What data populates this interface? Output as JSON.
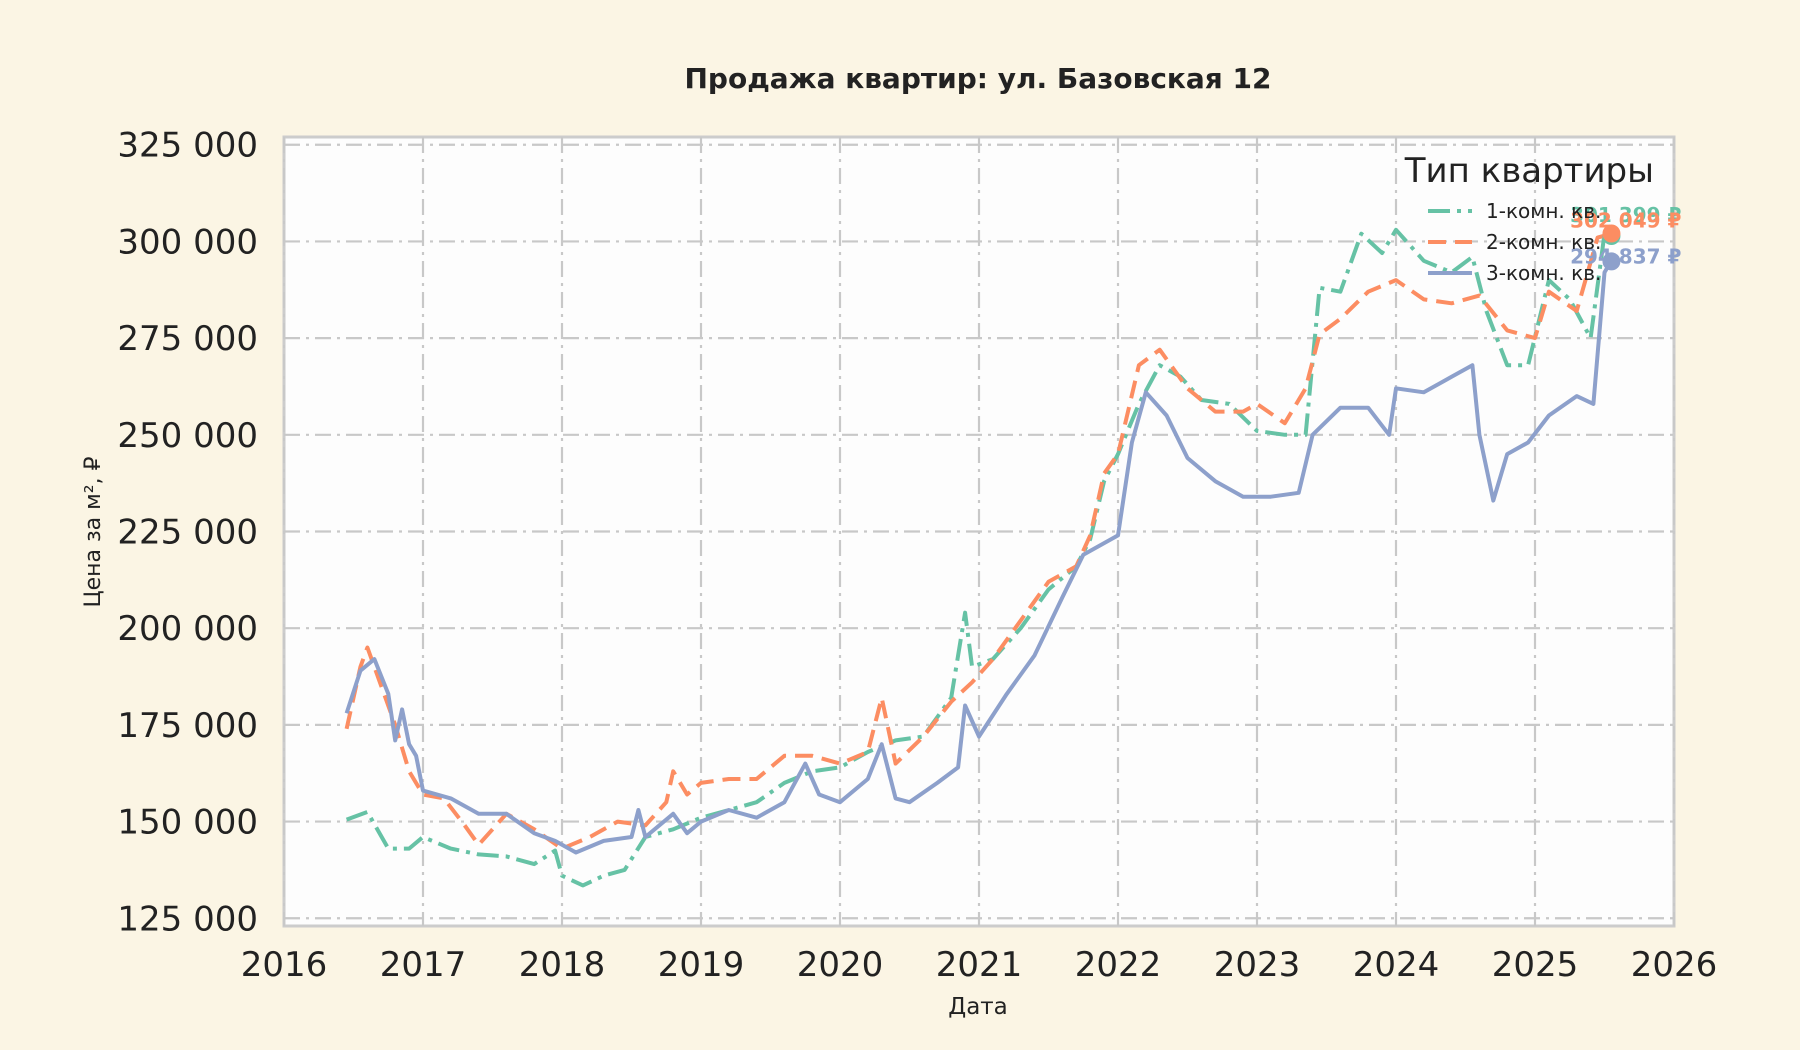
{
  "chart_data": {
    "type": "line",
    "title": "Продажа квартир: ул. Базовская 12",
    "xlabel": "Дата",
    "ylabel": "Цена за м², ₽",
    "xlim": [
      2016,
      2026
    ],
    "ylim": [
      123000,
      327000
    ],
    "x_ticks": [
      "2016",
      "2017",
      "2018",
      "2019",
      "2020",
      "2021",
      "2022",
      "2023",
      "2024",
      "2025",
      "2026"
    ],
    "y_ticks": [
      {
        "value": 125000,
        "label": "125 000"
      },
      {
        "value": 150000,
        "label": "150 000"
      },
      {
        "value": 175000,
        "label": "175 000"
      },
      {
        "value": 200000,
        "label": "200 000"
      },
      {
        "value": 225000,
        "label": "225 000"
      },
      {
        "value": 250000,
        "label": "250 000"
      },
      {
        "value": 275000,
        "label": "275 000"
      },
      {
        "value": 300000,
        "label": "300 000"
      },
      {
        "value": 325000,
        "label": "325 000"
      }
    ],
    "grid": true,
    "legend": {
      "title": "Тип квартиры",
      "position": "top-right"
    },
    "series": [
      {
        "name": "1-комн. кв.",
        "color": "#66c2a5",
        "dash": "dashdot",
        "points": [
          [
            2016.45,
            150500
          ],
          [
            2016.6,
            152500
          ],
          [
            2016.75,
            143000
          ],
          [
            2016.9,
            143000
          ],
          [
            2017.0,
            146000
          ],
          [
            2017.2,
            143000
          ],
          [
            2017.4,
            141500
          ],
          [
            2017.6,
            141000
          ],
          [
            2017.8,
            139000
          ],
          [
            2017.95,
            142500
          ],
          [
            2018.0,
            136000
          ],
          [
            2018.15,
            133500
          ],
          [
            2018.3,
            136000
          ],
          [
            2018.45,
            137500
          ],
          [
            2018.6,
            146000
          ],
          [
            2018.8,
            148000
          ],
          [
            2019.0,
            151000
          ],
          [
            2019.2,
            153000
          ],
          [
            2019.4,
            155000
          ],
          [
            2019.6,
            160000
          ],
          [
            2019.8,
            163000
          ],
          [
            2020.0,
            164000
          ],
          [
            2020.2,
            168000
          ],
          [
            2020.4,
            171000
          ],
          [
            2020.6,
            172000
          ],
          [
            2020.8,
            182000
          ],
          [
            2020.9,
            204000
          ],
          [
            2020.95,
            190000
          ],
          [
            2021.1,
            192000
          ],
          [
            2021.3,
            200000
          ],
          [
            2021.5,
            210000
          ],
          [
            2021.7,
            216000
          ],
          [
            2021.8,
            223000
          ],
          [
            2021.9,
            238000
          ],
          [
            2022.0,
            245000
          ],
          [
            2022.15,
            258000
          ],
          [
            2022.3,
            268000
          ],
          [
            2022.45,
            265000
          ],
          [
            2022.6,
            259000
          ],
          [
            2022.8,
            258000
          ],
          [
            2023.0,
            251000
          ],
          [
            2023.2,
            250000
          ],
          [
            2023.35,
            250000
          ],
          [
            2023.45,
            288000
          ],
          [
            2023.6,
            287000
          ],
          [
            2023.75,
            302000
          ],
          [
            2023.9,
            297000
          ],
          [
            2024.0,
            303000
          ],
          [
            2024.2,
            295000
          ],
          [
            2024.4,
            292000
          ],
          [
            2024.55,
            296000
          ],
          [
            2024.65,
            282000
          ],
          [
            2024.8,
            268000
          ],
          [
            2024.95,
            268000
          ],
          [
            2025.1,
            290000
          ],
          [
            2025.25,
            285000
          ],
          [
            2025.4,
            275000
          ],
          [
            2025.5,
            302000
          ],
          [
            2025.55,
            300000
          ]
        ]
      },
      {
        "name": "2-комн. кв.",
        "color": "#fc8d62",
        "dash": "dashed",
        "points": [
          [
            2016.45,
            174000
          ],
          [
            2016.55,
            190000
          ],
          [
            2016.6,
            195000
          ],
          [
            2016.7,
            185000
          ],
          [
            2016.8,
            175000
          ],
          [
            2016.9,
            163000
          ],
          [
            2017.0,
            157000
          ],
          [
            2017.15,
            156000
          ],
          [
            2017.3,
            149000
          ],
          [
            2017.4,
            144000
          ],
          [
            2017.6,
            152000
          ],
          [
            2017.8,
            148000
          ],
          [
            2018.0,
            143000
          ],
          [
            2018.2,
            146000
          ],
          [
            2018.4,
            150000
          ],
          [
            2018.6,
            149000
          ],
          [
            2018.75,
            155000
          ],
          [
            2018.8,
            163000
          ],
          [
            2018.9,
            157000
          ],
          [
            2019.0,
            160000
          ],
          [
            2019.2,
            161000
          ],
          [
            2019.4,
            161000
          ],
          [
            2019.6,
            167000
          ],
          [
            2019.8,
            167000
          ],
          [
            2020.0,
            165000
          ],
          [
            2020.2,
            168000
          ],
          [
            2020.3,
            182000
          ],
          [
            2020.4,
            165000
          ],
          [
            2020.6,
            172000
          ],
          [
            2020.8,
            181000
          ],
          [
            2020.95,
            186000
          ],
          [
            2021.1,
            192000
          ],
          [
            2021.3,
            202000
          ],
          [
            2021.5,
            212000
          ],
          [
            2021.7,
            216000
          ],
          [
            2021.8,
            224000
          ],
          [
            2021.9,
            240000
          ],
          [
            2022.0,
            245000
          ],
          [
            2022.15,
            268000
          ],
          [
            2022.3,
            272000
          ],
          [
            2022.5,
            262000
          ],
          [
            2022.7,
            256000
          ],
          [
            2022.9,
            256000
          ],
          [
            2023.0,
            258000
          ],
          [
            2023.2,
            253000
          ],
          [
            2023.35,
            262000
          ],
          [
            2023.45,
            276000
          ],
          [
            2023.6,
            280000
          ],
          [
            2023.8,
            287000
          ],
          [
            2024.0,
            290000
          ],
          [
            2024.2,
            285000
          ],
          [
            2024.4,
            284000
          ],
          [
            2024.6,
            286000
          ],
          [
            2024.8,
            277000
          ],
          [
            2025.0,
            275000
          ],
          [
            2025.1,
            287000
          ],
          [
            2025.3,
            282000
          ],
          [
            2025.45,
            301000
          ],
          [
            2025.55,
            302000
          ]
        ]
      },
      {
        "name": "3-комн. кв.",
        "color": "#8da0cb",
        "dash": "solid",
        "points": [
          [
            2016.45,
            178000
          ],
          [
            2016.55,
            189000
          ],
          [
            2016.65,
            192000
          ],
          [
            2016.75,
            183000
          ],
          [
            2016.8,
            171000
          ],
          [
            2016.85,
            179000
          ],
          [
            2016.9,
            170000
          ],
          [
            2016.95,
            167000
          ],
          [
            2017.0,
            158000
          ],
          [
            2017.2,
            156000
          ],
          [
            2017.4,
            152000
          ],
          [
            2017.6,
            152000
          ],
          [
            2017.8,
            147000
          ],
          [
            2017.95,
            145000
          ],
          [
            2018.1,
            142000
          ],
          [
            2018.3,
            145000
          ],
          [
            2018.5,
            146000
          ],
          [
            2018.55,
            153000
          ],
          [
            2018.6,
            146000
          ],
          [
            2018.8,
            152000
          ],
          [
            2018.9,
            147000
          ],
          [
            2019.0,
            150000
          ],
          [
            2019.2,
            153000
          ],
          [
            2019.4,
            151000
          ],
          [
            2019.6,
            155000
          ],
          [
            2019.75,
            165000
          ],
          [
            2019.85,
            157000
          ],
          [
            2020.0,
            155000
          ],
          [
            2020.2,
            161000
          ],
          [
            2020.3,
            170000
          ],
          [
            2020.4,
            156000
          ],
          [
            2020.5,
            155000
          ],
          [
            2020.7,
            160000
          ],
          [
            2020.85,
            164000
          ],
          [
            2020.9,
            180000
          ],
          [
            2021.0,
            172000
          ],
          [
            2021.2,
            183000
          ],
          [
            2021.4,
            193000
          ],
          [
            2021.6,
            208000
          ],
          [
            2021.75,
            219000
          ],
          [
            2022.0,
            224000
          ],
          [
            2022.1,
            248000
          ],
          [
            2022.2,
            261000
          ],
          [
            2022.35,
            255000
          ],
          [
            2022.5,
            244000
          ],
          [
            2022.7,
            238000
          ],
          [
            2022.9,
            234000
          ],
          [
            2023.1,
            234000
          ],
          [
            2023.3,
            235000
          ],
          [
            2023.4,
            250000
          ],
          [
            2023.6,
            257000
          ],
          [
            2023.8,
            257000
          ],
          [
            2023.95,
            250000
          ],
          [
            2024.0,
            262000
          ],
          [
            2024.2,
            261000
          ],
          [
            2024.4,
            265000
          ],
          [
            2024.55,
            268000
          ],
          [
            2024.6,
            250000
          ],
          [
            2024.7,
            233000
          ],
          [
            2024.8,
            245000
          ],
          [
            2024.95,
            248000
          ],
          [
            2025.1,
            255000
          ],
          [
            2025.3,
            260000
          ],
          [
            2025.42,
            258000
          ],
          [
            2025.5,
            292000
          ],
          [
            2025.55,
            295000
          ]
        ]
      }
    ],
    "end_labels": [
      {
        "series": "1-комн. кв.",
        "x": 2025.55,
        "value": 301399,
        "text": "301 399 ₽",
        "color": "#66c2a5"
      },
      {
        "series": "2-комн. кв.",
        "x": 2025.55,
        "value": 302049,
        "text": "302 049 ₽",
        "color": "#fc8d62"
      },
      {
        "series": "3-комн. кв.",
        "x": 2025.55,
        "value": 294837,
        "text": "294 837 ₽",
        "color": "#8da0cb"
      }
    ]
  }
}
